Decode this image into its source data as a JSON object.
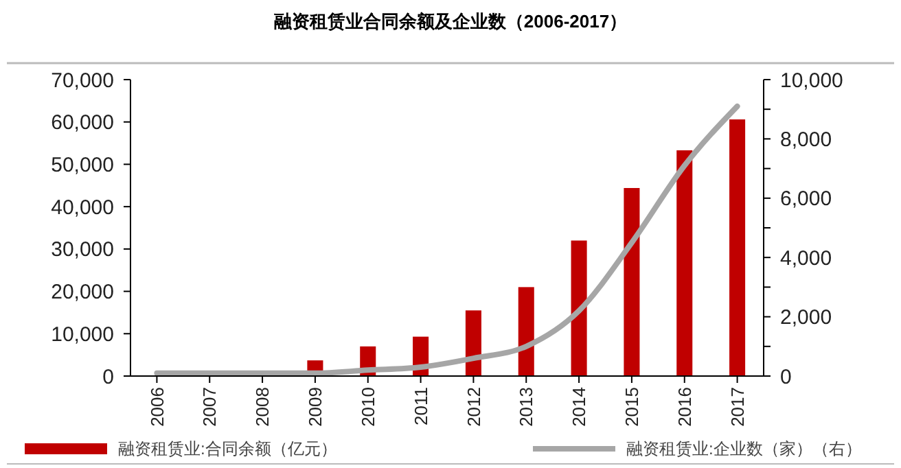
{
  "chart_data": {
    "type": "bar",
    "title": "融资租赁业合同余额及企业数（2006-2017）",
    "categories": [
      "2006",
      "2007",
      "2008",
      "2009",
      "2010",
      "2011",
      "2012",
      "2013",
      "2014",
      "2015",
      "2016",
      "2017"
    ],
    "series": [
      {
        "name": "融资租赁业:合同余额（亿元）",
        "color": "#c00000",
        "values": [
          null,
          null,
          null,
          3700,
          7000,
          9300,
          15500,
          21000,
          32000,
          44400,
          53300,
          60600
        ]
      },
      {
        "name": "融资租赁业:企业数（家）（右）",
        "type": "line",
        "axis": "y2",
        "color": "#a6a6a6",
        "values": [
          100,
          100,
          100,
          100,
          200,
          300,
          600,
          1000,
          2200,
          4500,
          7100,
          9100
        ]
      }
    ],
    "ylim": [
      0,
      70000
    ],
    "yticks": [
      {
        "value": 0,
        "label": "0"
      },
      {
        "value": 10000,
        "label": "10,000"
      },
      {
        "value": 20000,
        "label": "20,000"
      },
      {
        "value": 30000,
        "label": "30,000"
      },
      {
        "value": 40000,
        "label": "40,000"
      },
      {
        "value": 50000,
        "label": "50,000"
      },
      {
        "value": 60000,
        "label": "60,000"
      },
      {
        "value": 70000,
        "label": "70,000"
      }
    ],
    "y2lim": [
      0,
      10000
    ],
    "y2ticks": [
      {
        "value": 0,
        "label": "0"
      },
      {
        "value": 1000,
        "label": null
      },
      {
        "value": 2000,
        "label": "2,000"
      },
      {
        "value": 3000,
        "label": null
      },
      {
        "value": 4000,
        "label": "4,000"
      },
      {
        "value": 5000,
        "label": null
      },
      {
        "value": 6000,
        "label": "6,000"
      },
      {
        "value": 7000,
        "label": null
      },
      {
        "value": 8000,
        "label": "8,000"
      },
      {
        "value": 9000,
        "label": null
      },
      {
        "value": 10000,
        "label": "10,000"
      }
    ],
    "grid": false,
    "legend": "bottom"
  }
}
